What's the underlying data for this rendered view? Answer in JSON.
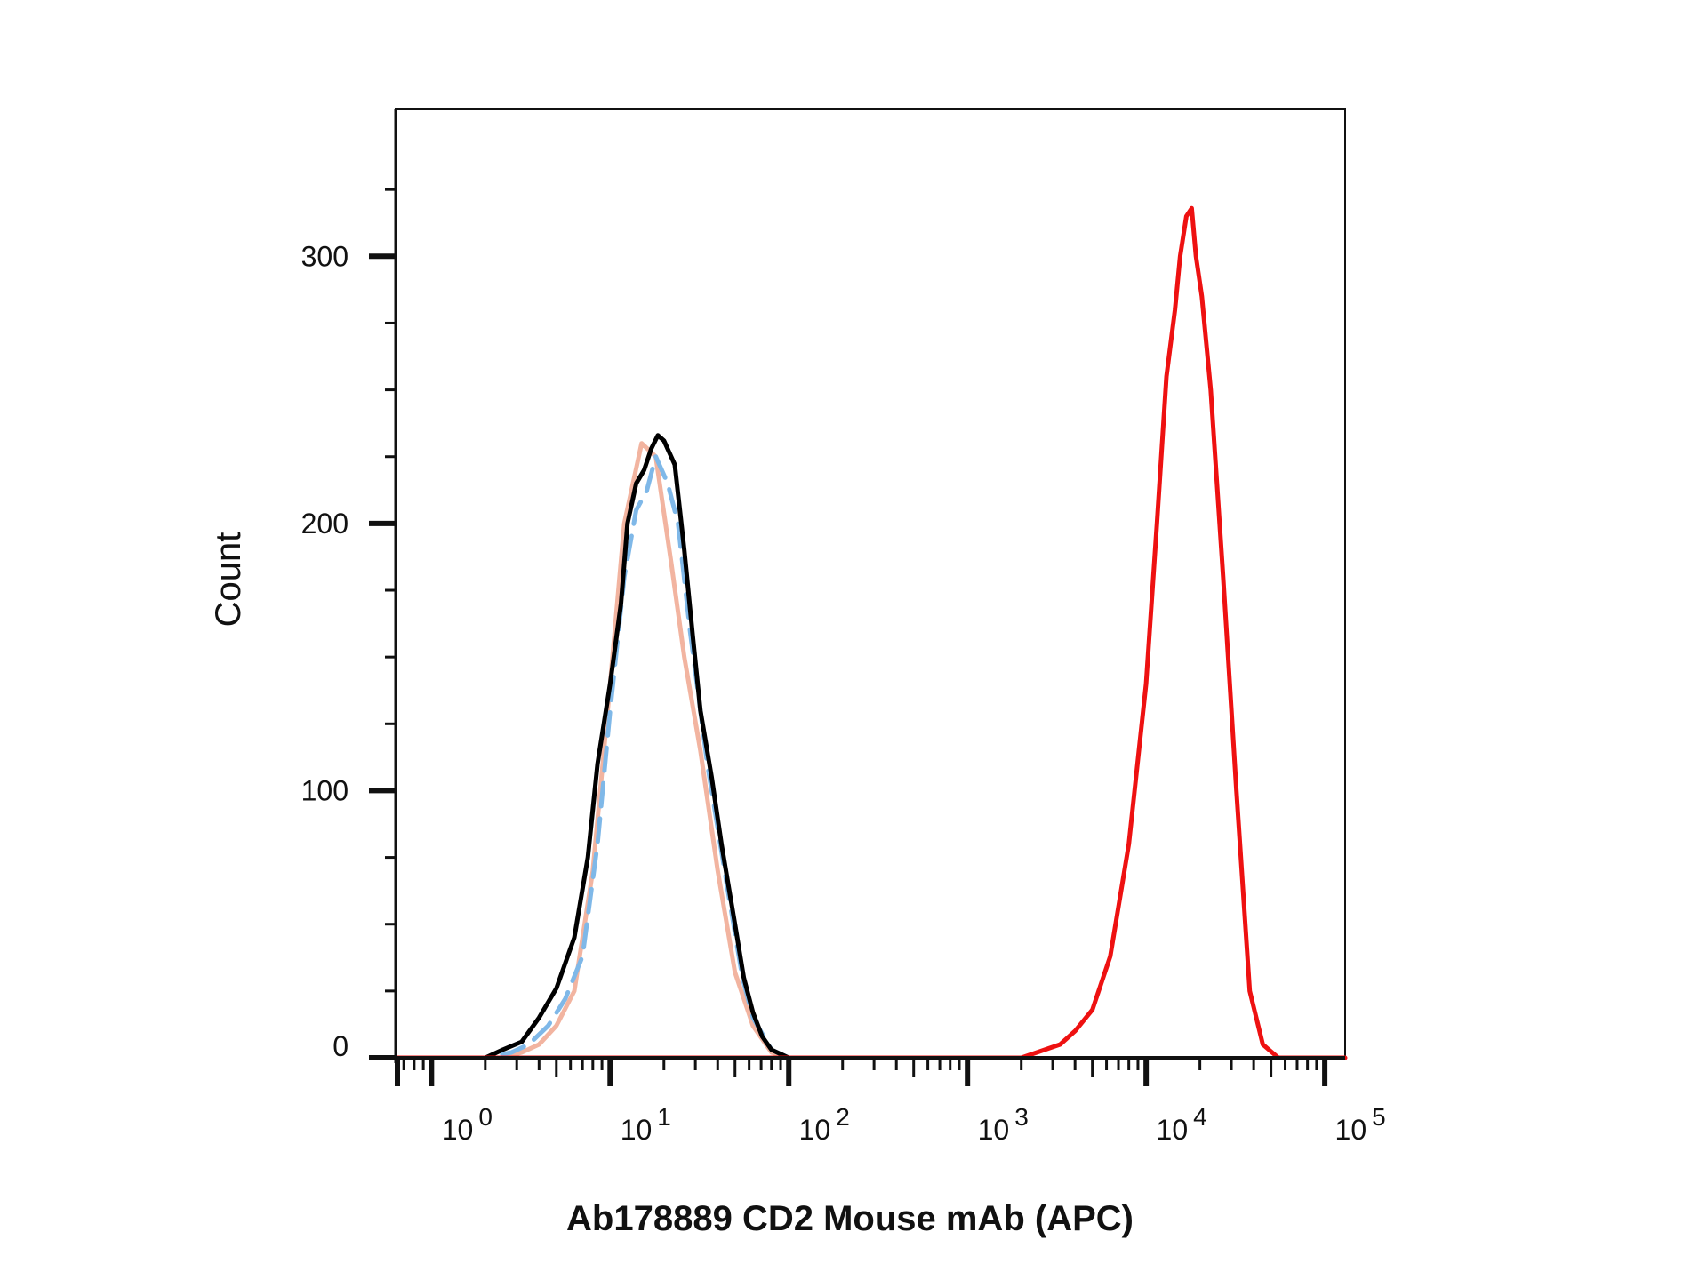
{
  "chart_data": {
    "type": "line",
    "title": "",
    "xlabel": "Ab178889 CD2 Mouse mAb (APC)",
    "ylabel": "Count",
    "x_scale": "log",
    "xlim": [
      0.63,
      130000
    ],
    "ylim": [
      0,
      355
    ],
    "y_ticks": [
      0,
      100,
      200,
      300
    ],
    "y_tick_labels": [
      "0",
      "100",
      "200",
      "300"
    ],
    "x_tick_labels": [
      {
        "base": "10",
        "exp": "0"
      },
      {
        "base": "10",
        "exp": "1"
      },
      {
        "base": "10",
        "exp": "2"
      },
      {
        "base": "10",
        "exp": "3"
      },
      {
        "base": "10",
        "exp": "4"
      },
      {
        "base": "10",
        "exp": "5"
      }
    ],
    "grid": false,
    "legend": "none",
    "series": [
      {
        "color": "#f2b4a0",
        "style": "solid",
        "points": [
          [
            1.0,
            0
          ],
          [
            2.5,
            0
          ],
          [
            3.2,
            2
          ],
          [
            4.0,
            5
          ],
          [
            5.0,
            12
          ],
          [
            6.3,
            25
          ],
          [
            8.0,
            70
          ],
          [
            10,
            140
          ],
          [
            12,
            200
          ],
          [
            15,
            230
          ],
          [
            18,
            225
          ],
          [
            22,
            185
          ],
          [
            26,
            150
          ],
          [
            32,
            115
          ],
          [
            40,
            70
          ],
          [
            50,
            32
          ],
          [
            63,
            12
          ],
          [
            80,
            2
          ],
          [
            100,
            0
          ],
          [
            1000,
            0
          ]
        ]
      },
      {
        "color": "#7fb8e8",
        "style": "dashed",
        "points": [
          [
            1.0,
            0
          ],
          [
            2.0,
            0
          ],
          [
            2.8,
            2
          ],
          [
            3.5,
            5
          ],
          [
            4.5,
            12
          ],
          [
            5.6,
            22
          ],
          [
            7.0,
            38
          ],
          [
            8.5,
            80
          ],
          [
            10,
            130
          ],
          [
            12,
            180
          ],
          [
            14,
            205
          ],
          [
            16,
            212
          ],
          [
            18,
            225
          ],
          [
            21,
            215
          ],
          [
            24,
            200
          ],
          [
            28,
            160
          ],
          [
            35,
            110
          ],
          [
            45,
            65
          ],
          [
            55,
            30
          ],
          [
            63,
            15
          ],
          [
            80,
            3
          ],
          [
            100,
            0
          ],
          [
            1000,
            0
          ]
        ]
      },
      {
        "color": "#000000",
        "style": "solid",
        "points": [
          [
            1.2,
            0
          ],
          [
            2.0,
            0
          ],
          [
            2.5,
            3
          ],
          [
            3.2,
            6
          ],
          [
            4.0,
            15
          ],
          [
            5.0,
            26
          ],
          [
            6.3,
            45
          ],
          [
            7.5,
            75
          ],
          [
            8.5,
            110
          ],
          [
            10,
            140
          ],
          [
            11.5,
            170
          ],
          [
            12.5,
            200
          ],
          [
            14,
            215
          ],
          [
            15.5,
            220
          ],
          [
            17,
            228
          ],
          [
            18.5,
            233
          ],
          [
            20,
            231
          ],
          [
            23,
            222
          ],
          [
            26,
            190
          ],
          [
            29,
            158
          ],
          [
            32,
            130
          ],
          [
            37,
            105
          ],
          [
            42,
            80
          ],
          [
            50,
            50
          ],
          [
            56,
            30
          ],
          [
            63,
            17
          ],
          [
            71,
            8
          ],
          [
            80,
            3
          ],
          [
            100,
            0
          ],
          [
            125,
            0
          ]
        ]
      },
      {
        "color": "#ee1111",
        "style": "solid",
        "points": [
          [
            0.63,
            0
          ],
          [
            1000,
            0
          ],
          [
            2000,
            0
          ],
          [
            2700,
            3
          ],
          [
            3300,
            5
          ],
          [
            4000,
            10
          ],
          [
            5000,
            18
          ],
          [
            6300,
            38
          ],
          [
            8000,
            80
          ],
          [
            10000,
            140
          ],
          [
            11500,
            200
          ],
          [
            13000,
            255
          ],
          [
            14500,
            280
          ],
          [
            15500,
            300
          ],
          [
            16800,
            315
          ],
          [
            18000,
            318
          ],
          [
            19000,
            300
          ],
          [
            20500,
            285
          ],
          [
            23000,
            250
          ],
          [
            27000,
            180
          ],
          [
            32000,
            100
          ],
          [
            38000,
            25
          ],
          [
            45000,
            5
          ],
          [
            55000,
            0
          ],
          [
            130000,
            0
          ]
        ]
      }
    ]
  }
}
